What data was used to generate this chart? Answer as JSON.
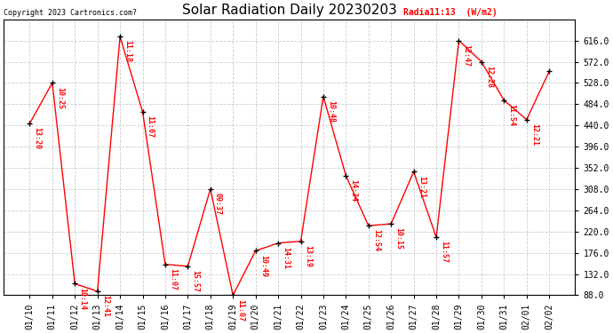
{
  "title": "Solar Radiation Daily 20230203",
  "copyright": "Copyright 2023 Cartronics.com?",
  "legend_label": "Radia11:13  (W/m2)",
  "dates": [
    "01/10",
    "01/11",
    "01/12",
    "01/13",
    "01/14",
    "01/15",
    "01/16",
    "01/17",
    "01/18",
    "01/19",
    "01/20",
    "01/21",
    "01/22",
    "01/23",
    "01/24",
    "01/25",
    "01/26",
    "01/27",
    "01/28",
    "01/29",
    "01/30",
    "01/31",
    "02/01",
    "02/02"
  ],
  "values": [
    444,
    528,
    112,
    96,
    624,
    468,
    152,
    148,
    308,
    88,
    180,
    196,
    200,
    500,
    336,
    232,
    236,
    344,
    208,
    616,
    572,
    492,
    452,
    552
  ],
  "point_labels": [
    "13:20",
    "10:25",
    "10:14",
    "12:41",
    "11:18",
    "11:07",
    "11:07",
    "15:57",
    "09:37",
    "11:07",
    "10:49",
    "14:31",
    "13:19",
    "10:48",
    "14:34",
    "12:54",
    "10:15",
    "13:21",
    "11:57",
    "12:47",
    "12:28",
    "11:54",
    "12:21",
    ""
  ],
  "ylim_min": 88.0,
  "ylim_max": 660.0,
  "yticks": [
    88.0,
    132.0,
    176.0,
    220.0,
    264.0,
    308.0,
    352.0,
    396.0,
    440.0,
    484.0,
    528.0,
    572.0,
    616.0
  ],
  "line_color": "red",
  "marker_color": "black",
  "background_color": "#ffffff",
  "grid_color": "#cccccc",
  "title_fontsize": 11,
  "label_fontsize": 6,
  "copyright_fontsize": 6,
  "legend_fontsize": 7,
  "tick_fontsize": 7
}
